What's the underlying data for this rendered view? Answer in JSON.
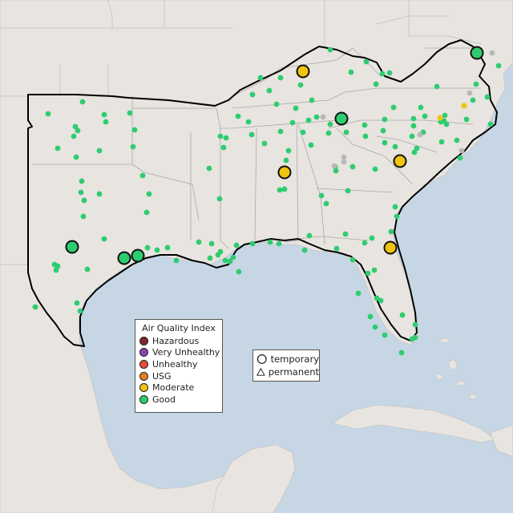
{
  "legend": {
    "title": "Air Quality Index",
    "categories": [
      {
        "label": "Hazardous",
        "color": "#7e2a2a"
      },
      {
        "label": "Very Unhealthy",
        "color": "#8e44ad"
      },
      {
        "label": "Unhealthy",
        "color": "#e74c3c"
      },
      {
        "label": "USG",
        "color": "#e67e22"
      },
      {
        "label": "Moderate",
        "color": "#f1c40f"
      },
      {
        "label": "Good",
        "color": "#2ecc71"
      }
    ]
  },
  "shape_legend": {
    "items": [
      {
        "label": "temporary",
        "icon": "circle-icon"
      },
      {
        "label": "permanent",
        "icon": "triangle-icon"
      }
    ]
  },
  "colors": {
    "water": "#c6d6e4",
    "land": "#e8e4e0",
    "good": "#2ecc71",
    "moderate": "#f1c40f",
    "inactive": "#b8b8b8"
  }
}
